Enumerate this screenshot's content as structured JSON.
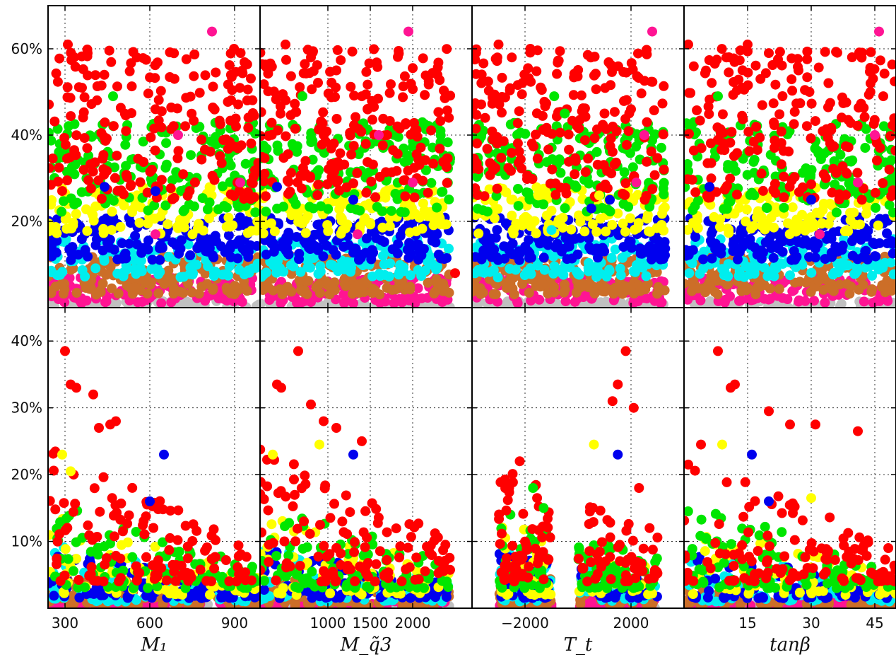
{
  "chart_data": {
    "type": "scatter",
    "layout": {
      "rows": 2,
      "cols": 4,
      "sharey_per_row": true
    },
    "colors": {
      "red": "#ff0000",
      "green": "#00e600",
      "yellow": "#ffff00",
      "blue": "#0000ee",
      "cyan": "#00eeee",
      "brown": "#cc6e28",
      "pink": "#ff1493",
      "gray": "#c0c0c0"
    },
    "columns": [
      {
        "xlabel": "M₁",
        "xlim": [
          240,
          990
        ],
        "xticks": [
          300,
          600,
          900
        ],
        "xtick_labels": [
          "300",
          "600",
          "900"
        ]
      },
      {
        "xlabel": "M_q̃3",
        "xlim": [
          200,
          2700
        ],
        "xticks": [
          1000,
          1500,
          2000
        ],
        "xtick_labels": [
          "1000",
          "1500",
          "2000"
        ]
      },
      {
        "xlabel": "T_t",
        "xlim": [
          -4000,
          4000
        ],
        "xticks": [
          -2000,
          2000
        ],
        "xtick_labels": [
          "−2000",
          "2000"
        ]
      },
      {
        "xlabel": "tanβ",
        "xlim": [
          0,
          50
        ],
        "xticks": [
          15,
          30,
          45
        ],
        "xtick_labels": [
          "15",
          "30",
          "45"
        ]
      }
    ],
    "rows": [
      {
        "ylim": [
          0,
          70
        ],
        "yticks": [
          20,
          40,
          60
        ],
        "ytick_labels": [
          "20%",
          "40%",
          "60%"
        ]
      },
      {
        "ylim": [
          0,
          45
        ],
        "yticks": [
          10,
          20,
          30,
          40
        ],
        "ytick_labels": [
          "10%",
          "20%",
          "30%",
          "40%"
        ]
      }
    ],
    "grid": true,
    "series_order": [
      "gray",
      "pink",
      "brown",
      "cyan",
      "blue",
      "yellow",
      "green",
      "red"
    ],
    "panels": [
      {
        "row": 0,
        "col": 0,
        "bands": [
          [
            240,
            990
          ]
        ],
        "points": [
          [
            310,
            61,
            "red"
          ],
          [
            380,
            59,
            "red"
          ],
          [
            620,
            46,
            "red"
          ],
          [
            905,
            42,
            "red"
          ],
          [
            870,
            39,
            "red"
          ],
          [
            910,
            29,
            "red"
          ],
          [
            960,
            29,
            "red"
          ],
          [
            470,
            49,
            "green"
          ],
          [
            700,
            40,
            "pink"
          ],
          [
            920,
            29,
            "pink"
          ],
          [
            620,
            17,
            "pink"
          ],
          [
            820,
            64,
            "pink"
          ],
          [
            440,
            28,
            "blue"
          ],
          [
            620,
            27,
            "blue"
          ]
        ]
      },
      {
        "row": 1,
        "col": 0,
        "bands": [
          [
            240,
            990
          ]
        ],
        "points": [
          [
            300,
            38.5,
            "red"
          ],
          [
            320,
            33.5,
            "red"
          ],
          [
            340,
            33,
            "red"
          ],
          [
            400,
            32,
            "red"
          ],
          [
            420,
            27,
            "red"
          ],
          [
            460,
            27.5,
            "red"
          ],
          [
            480,
            28,
            "red"
          ],
          [
            290,
            23,
            "yellow"
          ],
          [
            320,
            20.5,
            "yellow"
          ],
          [
            650,
            23,
            "blue"
          ],
          [
            600,
            16,
            "blue"
          ]
        ]
      },
      {
        "row": 0,
        "col": 1,
        "bands": [
          [
            200,
            2450
          ]
        ],
        "points": [
          [
            500,
            61,
            "red"
          ],
          [
            800,
            58,
            "red"
          ],
          [
            1100,
            55,
            "red"
          ],
          [
            1400,
            49,
            "red"
          ],
          [
            1820,
            42,
            "red"
          ],
          [
            1700,
            40,
            "red"
          ],
          [
            2050,
            30,
            "red"
          ],
          [
            2500,
            8,
            "red"
          ],
          [
            700,
            49,
            "green"
          ],
          [
            1600,
            40,
            "pink"
          ],
          [
            2000,
            29,
            "pink"
          ],
          [
            1350,
            17,
            "pink"
          ],
          [
            1950,
            64,
            "pink"
          ],
          [
            400,
            28,
            "blue"
          ],
          [
            1300,
            25,
            "blue"
          ]
        ]
      },
      {
        "row": 1,
        "col": 1,
        "bands": [
          [
            200,
            2450
          ]
        ],
        "points": [
          [
            650,
            38.5,
            "red"
          ],
          [
            400,
            33.5,
            "red"
          ],
          [
            450,
            33,
            "red"
          ],
          [
            800,
            30.5,
            "red"
          ],
          [
            1100,
            27,
            "red"
          ],
          [
            950,
            28,
            "red"
          ],
          [
            1400,
            25,
            "red"
          ],
          [
            350,
            23,
            "yellow"
          ],
          [
            900,
            24.5,
            "yellow"
          ],
          [
            1300,
            23,
            "blue"
          ]
        ]
      },
      {
        "row": 0,
        "col": 2,
        "bands": [
          [
            -4000,
            3300
          ]
        ],
        "points": [
          [
            -3000,
            61,
            "red"
          ],
          [
            -2500,
            58,
            "red"
          ],
          [
            -1800,
            60,
            "red"
          ],
          [
            1000,
            45,
            "red"
          ],
          [
            2000,
            46,
            "red"
          ],
          [
            2600,
            43,
            "red"
          ],
          [
            -900,
            49,
            "green"
          ],
          [
            -500,
            45,
            "green"
          ],
          [
            -1500,
            26,
            "yellow"
          ],
          [
            800,
            26,
            "yellow"
          ],
          [
            2500,
            40,
            "pink"
          ],
          [
            2200,
            29,
            "pink"
          ],
          [
            2800,
            64,
            "pink"
          ],
          [
            500,
            23,
            "blue"
          ],
          [
            1200,
            25,
            "blue"
          ],
          [
            -1000,
            18,
            "cyan"
          ]
        ]
      },
      {
        "row": 1,
        "col": 2,
        "bands": [
          [
            -3000,
            -1000
          ],
          [
            0,
            3000
          ]
        ],
        "points": [
          [
            -2200,
            22,
            "red"
          ],
          [
            -2600,
            18,
            "red"
          ],
          [
            1800,
            38.5,
            "red"
          ],
          [
            1500,
            33.5,
            "red"
          ],
          [
            1300,
            31,
            "red"
          ],
          [
            2100,
            30,
            "red"
          ],
          [
            2300,
            18,
            "red"
          ],
          [
            2700,
            12,
            "red"
          ],
          [
            -1700,
            18,
            "green"
          ],
          [
            -1300,
            15,
            "green"
          ],
          [
            600,
            24.5,
            "yellow"
          ],
          [
            1500,
            23,
            "blue"
          ]
        ]
      },
      {
        "row": 0,
        "col": 3,
        "bands": [
          [
            0,
            50
          ]
        ],
        "points": [
          [
            1,
            61,
            "red"
          ],
          [
            15,
            61,
            "red"
          ],
          [
            20,
            59,
            "red"
          ],
          [
            10,
            58,
            "red"
          ],
          [
            27,
            55,
            "red"
          ],
          [
            44,
            52,
            "red"
          ],
          [
            47,
            49,
            "red"
          ],
          [
            8,
            49,
            "green"
          ],
          [
            45,
            40,
            "pink"
          ],
          [
            41,
            29,
            "pink"
          ],
          [
            32,
            17,
            "pink"
          ],
          [
            46,
            64,
            "pink"
          ],
          [
            6,
            28,
            "blue"
          ],
          [
            30,
            25,
            "blue"
          ]
        ]
      },
      {
        "row": 1,
        "col": 3,
        "bands": [
          [
            0,
            50
          ]
        ],
        "points": [
          [
            8,
            38.5,
            "red"
          ],
          [
            12,
            33.5,
            "red"
          ],
          [
            11,
            33,
            "red"
          ],
          [
            20,
            29.5,
            "red"
          ],
          [
            25,
            27.5,
            "red"
          ],
          [
            31,
            27.5,
            "red"
          ],
          [
            41,
            26.5,
            "red"
          ],
          [
            1,
            21.5,
            "red"
          ],
          [
            4,
            24.5,
            "red"
          ],
          [
            9,
            24.5,
            "yellow"
          ],
          [
            16,
            23,
            "blue"
          ],
          [
            20,
            16,
            "blue"
          ],
          [
            30,
            16.5,
            "yellow"
          ]
        ]
      }
    ]
  }
}
